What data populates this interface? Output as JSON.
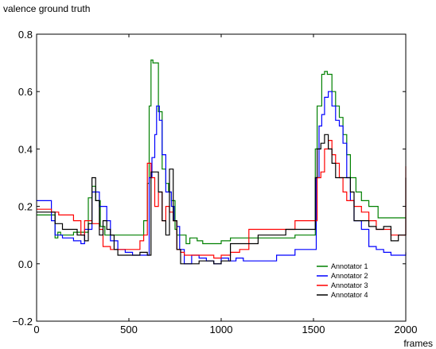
{
  "chart_data": {
    "type": "line",
    "title": "",
    "ylabel": "valence ground truth",
    "xlabel": "frames",
    "xlim": [
      0,
      2000
    ],
    "ylim": [
      -0.2,
      0.8
    ],
    "xticks": [
      0,
      500,
      1000,
      1500,
      2000
    ],
    "yticks": [
      -0.2,
      0.0,
      0.2,
      0.4,
      0.6,
      0.8
    ],
    "xtick_labels": [
      "0",
      "500",
      "1000",
      "1500",
      "2000"
    ],
    "ytick_labels": [
      "−0.2",
      "0.0",
      "0.2",
      "0.4",
      "0.6",
      "0.8"
    ],
    "grid": false,
    "legend_position": "lower-right",
    "series": [
      {
        "name": "Annotator 1",
        "color": "#008000",
        "x": [
          0,
          80,
          100,
          115,
          130,
          200,
          280,
          300,
          320,
          345,
          370,
          400,
          440,
          500,
          580,
          600,
          610,
          620,
          630,
          660,
          680,
          700,
          715,
          730,
          750,
          760,
          770,
          790,
          810,
          830,
          870,
          900,
          960,
          1000,
          1050,
          1100,
          1150,
          1200,
          1300,
          1400,
          1500,
          1510,
          1520,
          1545,
          1560,
          1575,
          1600,
          1620,
          1640,
          1660,
          1680,
          1700,
          1730,
          1760,
          1800,
          1850,
          1900,
          1950,
          1995,
          2000
        ],
        "y": [
          0.17,
          0.17,
          0.09,
          0.11,
          0.1,
          0.11,
          0.23,
          0.27,
          0.22,
          0.13,
          0.1,
          0.1,
          0.1,
          0.1,
          0.15,
          0.28,
          0.55,
          0.71,
          0.7,
          0.53,
          0.33,
          0.28,
          0.25,
          0.22,
          0.12,
          0.1,
          0.1,
          0.1,
          0.07,
          0.09,
          0.08,
          0.07,
          0.07,
          0.08,
          0.09,
          0.09,
          0.09,
          0.09,
          0.09,
          0.1,
          0.1,
          0.4,
          0.55,
          0.66,
          0.67,
          0.66,
          0.6,
          0.55,
          0.51,
          0.45,
          0.38,
          0.3,
          0.25,
          0.22,
          0.2,
          0.16,
          0.16,
          0.16,
          0.16,
          0.16
        ]
      },
      {
        "name": "Annotator 2",
        "color": "#0000ff",
        "x": [
          0,
          60,
          80,
          100,
          140,
          200,
          240,
          260,
          300,
          320,
          340,
          380,
          400,
          440,
          480,
          520,
          600,
          610,
          625,
          640,
          650,
          665,
          680,
          700,
          730,
          745,
          760,
          775,
          800,
          840,
          880,
          920,
          960,
          1000,
          1040,
          1080,
          1120,
          1150,
          1200,
          1300,
          1400,
          1500,
          1515,
          1530,
          1545,
          1560,
          1580,
          1600,
          1620,
          1640,
          1660,
          1680,
          1700,
          1720,
          1760,
          1800,
          1840,
          1880,
          1920,
          1960,
          2000
        ],
        "y": [
          0.22,
          0.22,
          0.15,
          0.1,
          0.09,
          0.08,
          0.07,
          0.12,
          0.25,
          0.25,
          0.2,
          0.15,
          0.08,
          0.05,
          0.04,
          0.03,
          0.03,
          0.3,
          0.37,
          0.45,
          0.55,
          0.5,
          0.38,
          0.25,
          0.2,
          0.15,
          0.13,
          0.05,
          0.0,
          0.03,
          0.02,
          0.01,
          0.0,
          0.02,
          0.01,
          0.02,
          0.01,
          0.01,
          0.01,
          0.03,
          0.05,
          0.05,
          0.3,
          0.48,
          0.52,
          0.58,
          0.6,
          0.55,
          0.5,
          0.48,
          0.42,
          0.3,
          0.22,
          0.15,
          0.12,
          0.06,
          0.05,
          0.04,
          0.03,
          0.03,
          0.04
        ]
      },
      {
        "name": "Annotator 3",
        "color": "#ff0000",
        "x": [
          0,
          60,
          80,
          120,
          160,
          200,
          240,
          260,
          300,
          340,
          360,
          400,
          440,
          480,
          520,
          560,
          580,
          600,
          620,
          640,
          660,
          680,
          700,
          720,
          740,
          760,
          780,
          800,
          840,
          900,
          960,
          1000,
          1050,
          1100,
          1150,
          1200,
          1250,
          1300,
          1350,
          1400,
          1450,
          1500,
          1520,
          1540,
          1560,
          1580,
          1600,
          1620,
          1640,
          1660,
          1680,
          1700,
          1720,
          1760,
          1800,
          1840,
          1880,
          1920,
          1960,
          2000
        ],
        "y": [
          0.19,
          0.19,
          0.18,
          0.17,
          0.17,
          0.15,
          0.1,
          0.15,
          0.14,
          0.12,
          0.06,
          0.05,
          0.05,
          0.05,
          0.05,
          0.08,
          0.1,
          0.35,
          0.3,
          0.2,
          0.25,
          0.15,
          0.2,
          0.18,
          0.15,
          0.05,
          0.04,
          0.03,
          0.03,
          0.03,
          0.02,
          0.03,
          0.04,
          0.05,
          0.12,
          0.12,
          0.12,
          0.12,
          0.12,
          0.15,
          0.15,
          0.15,
          0.3,
          0.32,
          0.4,
          0.43,
          0.38,
          0.35,
          0.3,
          0.25,
          0.22,
          0.22,
          0.2,
          0.18,
          0.15,
          0.12,
          0.12,
          0.1,
          0.1,
          0.34
        ]
      },
      {
        "name": "Annotator 4",
        "color": "#000000",
        "x": [
          0,
          60,
          100,
          140,
          180,
          220,
          260,
          280,
          300,
          320,
          340,
          360,
          380,
          400,
          420,
          440,
          480,
          520,
          560,
          600,
          620,
          640,
          660,
          680,
          700,
          720,
          740,
          760,
          780,
          800,
          840,
          880,
          920,
          960,
          1000,
          1050,
          1100,
          1150,
          1200,
          1250,
          1300,
          1350,
          1400,
          1450,
          1500,
          1510,
          1520,
          1540,
          1560,
          1580,
          1600,
          1620,
          1640,
          1660,
          1680,
          1700,
          1720,
          1760,
          1800,
          1840,
          1880,
          1920,
          1960,
          2000
        ],
        "y": [
          0.18,
          0.18,
          0.14,
          0.12,
          0.12,
          0.1,
          0.08,
          0.14,
          0.3,
          0.22,
          0.1,
          0.15,
          0.12,
          0.1,
          0.05,
          0.03,
          0.03,
          0.03,
          0.04,
          0.03,
          0.32,
          0.32,
          0.25,
          0.15,
          0.1,
          0.33,
          0.15,
          0.05,
          0.0,
          0.0,
          0.0,
          0.01,
          0.01,
          0.0,
          0.01,
          0.07,
          0.07,
          0.07,
          0.1,
          0.1,
          0.1,
          0.12,
          0.12,
          0.12,
          0.12,
          0.3,
          0.4,
          0.42,
          0.45,
          0.4,
          0.35,
          0.3,
          0.3,
          0.3,
          0.3,
          0.25,
          0.15,
          0.15,
          0.13,
          0.12,
          0.13,
          0.08,
          0.1,
          0.3
        ]
      }
    ]
  }
}
